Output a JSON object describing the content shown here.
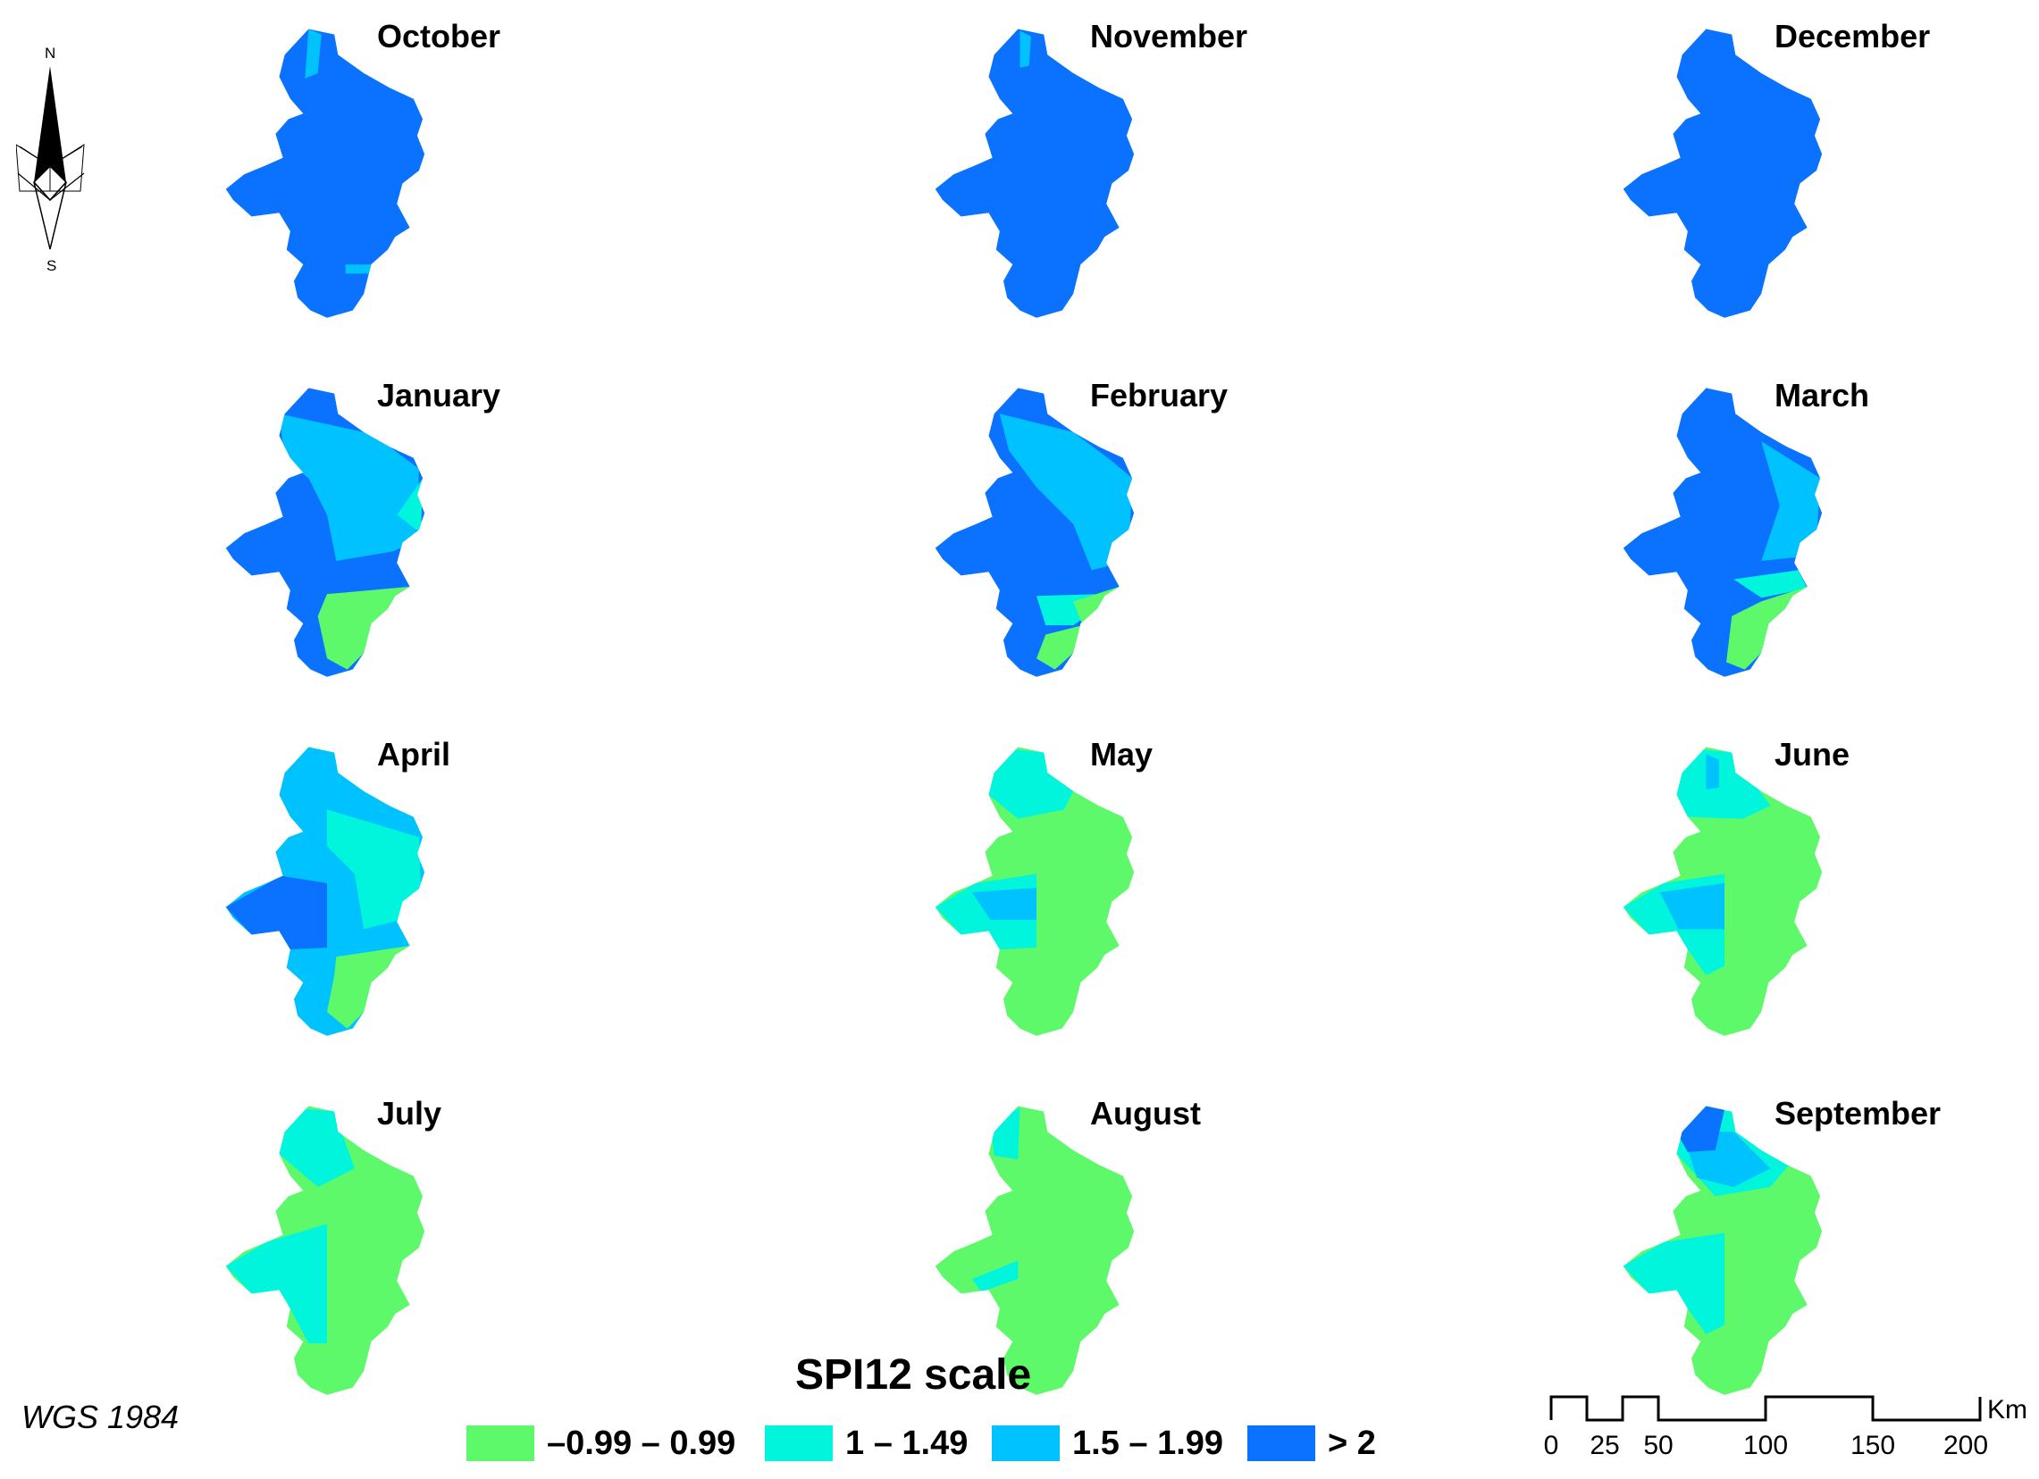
{
  "colors": {
    "class1": "#5EF96B",
    "class2": "#00F5DC",
    "class3": "#00C2FF",
    "class4": "#0A72FF"
  },
  "north_arrow": {
    "north": "N",
    "south": "S"
  },
  "projection_label": "WGS 1984",
  "legend": {
    "title": "SPI12 scale",
    "items": [
      {
        "label": "–0.99 – 0.99",
        "color": "#5EF96B"
      },
      {
        "label": "1 – 1.49",
        "color": "#00F5DC"
      },
      {
        "label": "1.5 – 1.99",
        "color": "#00C2FF"
      },
      {
        "label": "> 2",
        "color": "#0A72FF"
      }
    ]
  },
  "scale_bar": {
    "ticks": [
      "0",
      "25",
      "50",
      "100",
      "150",
      "200"
    ],
    "unit": "Km"
  },
  "maps": [
    {
      "month": "October",
      "dominant": "> 2"
    },
    {
      "month": "November",
      "dominant": "> 2"
    },
    {
      "month": "December",
      "dominant": "> 2"
    },
    {
      "month": "January",
      "dominant": "> 2"
    },
    {
      "month": "February",
      "dominant": "> 2"
    },
    {
      "month": "March",
      "dominant": "> 2"
    },
    {
      "month": "April",
      "dominant": "1.5 – 1.99"
    },
    {
      "month": "May",
      "dominant": "–0.99 – 0.99"
    },
    {
      "month": "June",
      "dominant": "–0.99 – 0.99"
    },
    {
      "month": "July",
      "dominant": "–0.99 – 0.99"
    },
    {
      "month": "August",
      "dominant": "–0.99 – 0.99"
    },
    {
      "month": "September",
      "dominant": "–0.99 – 0.99"
    }
  ]
}
